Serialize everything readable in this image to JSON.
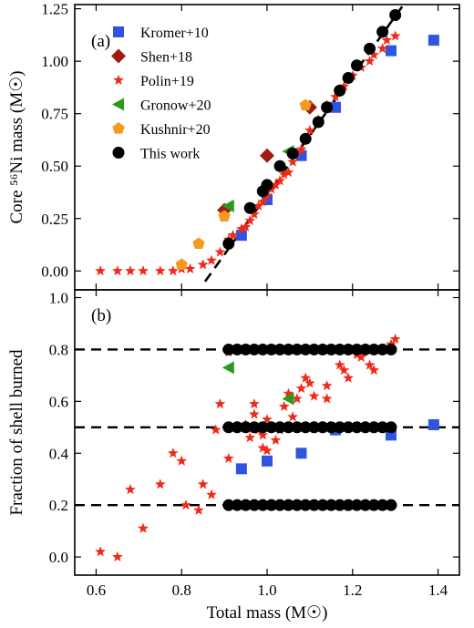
{
  "colors": {
    "Kromer+10": "#2f55e0",
    "Shen+18": "#a01c12",
    "Polin+19": "#f02a1a",
    "Gronow+20": "#2a9a1c",
    "Kushnir+20": "#f59a1a",
    "This work": "#000000",
    "reference": "#000000"
  },
  "chart_data": [
    {
      "panel": "top",
      "type": "scatter",
      "tag": "(a)",
      "ylabel": "Core ⁵⁶Ni mass (M☉)",
      "xlim": [
        0.55,
        1.45
      ],
      "ylim": [
        -0.09,
        1.27
      ],
      "yticks": [
        "0.00",
        "0.25",
        "0.50",
        "0.75",
        "1.00",
        "1.25"
      ],
      "ytick_values": [
        0,
        0.25,
        0.5,
        0.75,
        1.0,
        1.25
      ],
      "legend_position": "upper-left",
      "series": [
        {
          "name": "Kromer+10",
          "marker": "square",
          "x": [
            0.94,
            1.0,
            1.08,
            1.16,
            1.29,
            1.39
          ],
          "y": [
            0.17,
            0.34,
            0.55,
            0.78,
            1.05,
            1.1
          ]
        },
        {
          "name": "Shen+18",
          "marker": "diamond",
          "x": [
            0.9,
            1.0,
            1.1
          ],
          "y": [
            0.29,
            0.55,
            0.78
          ]
        },
        {
          "name": "Polin+19",
          "marker": "star",
          "x": [
            0.61,
            0.65,
            0.68,
            0.71,
            0.75,
            0.78,
            0.8,
            0.82,
            0.85,
            0.87,
            0.89,
            0.91,
            0.92,
            0.94,
            0.95,
            0.96,
            0.97,
            0.98,
            0.99,
            1.0,
            1.01,
            1.02,
            1.03,
            1.04,
            1.05,
            1.06,
            1.07,
            1.08,
            1.09,
            1.1,
            1.12,
            1.14,
            1.16,
            1.18,
            1.2,
            1.22,
            1.24,
            1.25,
            1.27,
            1.28,
            1.3
          ],
          "y": [
            0.0,
            0.0,
            0.0,
            0.0,
            0.0,
            0.0,
            0.01,
            0.01,
            0.03,
            0.05,
            0.09,
            0.15,
            0.17,
            0.2,
            0.21,
            0.24,
            0.27,
            0.31,
            0.33,
            0.36,
            0.39,
            0.41,
            0.43,
            0.46,
            0.47,
            0.52,
            0.56,
            0.58,
            0.63,
            0.67,
            0.72,
            0.79,
            0.83,
            0.88,
            0.93,
            0.97,
            1.0,
            1.03,
            1.06,
            1.1,
            1.12
          ]
        },
        {
          "name": "Gronow+20",
          "marker": "triangle-left",
          "x": [
            0.91,
            1.05
          ],
          "y": [
            0.31,
            0.57
          ]
        },
        {
          "name": "Kushnir+20",
          "marker": "pentagon",
          "x": [
            0.8,
            0.84,
            0.9,
            1.09
          ],
          "y": [
            0.03,
            0.13,
            0.26,
            0.79
          ]
        },
        {
          "name": "This work",
          "marker": "circle",
          "x": [
            0.91,
            0.96,
            0.99,
            1.0,
            1.03,
            1.06,
            1.09,
            1.12,
            1.14,
            1.17,
            1.19,
            1.21,
            1.24,
            1.27,
            1.3
          ],
          "y": [
            0.13,
            0.3,
            0.38,
            0.41,
            0.5,
            0.56,
            0.63,
            0.71,
            0.78,
            0.86,
            0.92,
            0.98,
            1.06,
            1.14,
            1.22
          ]
        }
      ],
      "reference_line": {
        "style": "dashed",
        "x": [
          0.855,
          1.33
        ],
        "y": [
          -0.05,
          1.3
        ]
      }
    },
    {
      "panel": "bottom",
      "type": "scatter",
      "tag": "(b)",
      "ylabel": "Fraction of shell burned",
      "xlabel": "Total mass (M☉)",
      "xlim": [
        0.55,
        1.45
      ],
      "ylim": [
        -0.07,
        1.03
      ],
      "xticks": [
        "0.6",
        "0.8",
        "1.0",
        "1.2",
        "1.4"
      ],
      "xtick_values": [
        0.6,
        0.8,
        1.0,
        1.2,
        1.4
      ],
      "yticks": [
        "0.0",
        "0.2",
        "0.4",
        "0.6",
        "0.8",
        "1.0"
      ],
      "ytick_values": [
        0,
        0.2,
        0.4,
        0.6,
        0.8,
        1.0
      ],
      "hlines": [
        0.2,
        0.5,
        0.8
      ],
      "series": [
        {
          "name": "Kromer+10",
          "marker": "square",
          "x": [
            0.94,
            1.0,
            1.08,
            1.16,
            1.29,
            1.39
          ],
          "y": [
            0.34,
            0.37,
            0.4,
            0.49,
            0.47,
            0.51
          ]
        },
        {
          "name": "Polin+19",
          "marker": "star",
          "x": [
            0.61,
            0.65,
            0.68,
            0.71,
            0.75,
            0.78,
            0.8,
            0.81,
            0.84,
            0.85,
            0.87,
            0.88,
            0.89,
            0.91,
            0.91,
            0.95,
            0.96,
            0.97,
            0.97,
            0.98,
            0.99,
            0.99,
            1.0,
            1.0,
            1.02,
            1.03,
            1.04,
            1.05,
            1.06,
            1.07,
            1.08,
            1.09,
            1.1,
            1.11,
            1.14,
            1.14,
            1.17,
            1.18,
            1.19,
            1.21,
            1.22,
            1.24,
            1.25,
            1.27,
            1.29,
            1.3
          ],
          "y": [
            0.02,
            0.0,
            0.26,
            0.11,
            0.28,
            0.4,
            0.37,
            0.2,
            0.18,
            0.28,
            0.24,
            0.49,
            0.59,
            0.38,
            0.79,
            0.51,
            0.46,
            0.59,
            0.55,
            0.49,
            0.47,
            0.42,
            0.53,
            0.41,
            0.45,
            0.49,
            0.58,
            0.63,
            0.54,
            0.61,
            0.65,
            0.69,
            0.67,
            0.62,
            0.66,
            0.61,
            0.74,
            0.72,
            0.69,
            0.78,
            0.77,
            0.74,
            0.72,
            0.8,
            0.82,
            0.84
          ]
        },
        {
          "name": "Gronow+20",
          "marker": "triangle-left",
          "x": [
            0.91,
            1.05
          ],
          "y": [
            0.73,
            0.61
          ]
        },
        {
          "name": "This work",
          "marker": "circle",
          "x": [
            0.91,
            0.93,
            0.95,
            0.97,
            0.99,
            1.01,
            1.03,
            1.05,
            1.07,
            1.09,
            1.11,
            1.13,
            1.15,
            1.17,
            1.19,
            1.21,
            1.23,
            1.25,
            1.27,
            1.29,
            0.91,
            0.93,
            0.95,
            0.97,
            0.99,
            1.01,
            1.03,
            1.05,
            1.07,
            1.09,
            1.11,
            1.13,
            1.15,
            1.17,
            1.19,
            1.21,
            1.23,
            1.25,
            1.27,
            1.29,
            0.91,
            0.93,
            0.95,
            0.97,
            0.99,
            1.01,
            1.03,
            1.05,
            1.07,
            1.09,
            1.11,
            1.13,
            1.15,
            1.17,
            1.19,
            1.21,
            1.23,
            1.25,
            1.27,
            1.29
          ],
          "y": [
            0.8,
            0.8,
            0.8,
            0.8,
            0.8,
            0.8,
            0.8,
            0.8,
            0.8,
            0.8,
            0.8,
            0.8,
            0.8,
            0.8,
            0.8,
            0.8,
            0.8,
            0.8,
            0.8,
            0.8,
            0.5,
            0.5,
            0.5,
            0.5,
            0.5,
            0.5,
            0.5,
            0.5,
            0.5,
            0.5,
            0.5,
            0.5,
            0.5,
            0.5,
            0.5,
            0.5,
            0.5,
            0.5,
            0.5,
            0.5,
            0.2,
            0.2,
            0.2,
            0.2,
            0.2,
            0.2,
            0.2,
            0.2,
            0.2,
            0.2,
            0.2,
            0.2,
            0.2,
            0.2,
            0.2,
            0.2,
            0.2,
            0.2,
            0.2,
            0.2
          ]
        }
      ]
    }
  ]
}
